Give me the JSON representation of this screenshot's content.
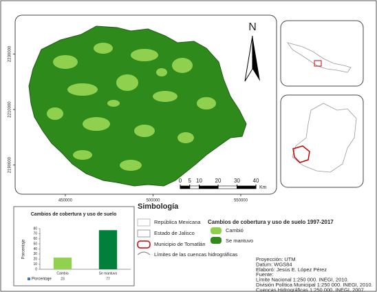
{
  "map": {
    "north": "N",
    "xlim": [
      421400,
      570400
    ],
    "ylim": [
      2179500,
      2244000
    ],
    "xticks": [
      450000,
      500000,
      550000
    ],
    "yticks": [
      2230000,
      2210000,
      2190000
    ],
    "scale": {
      "ticks": [
        0,
        5,
        10,
        20,
        30,
        40
      ],
      "unit": "Km"
    }
  },
  "chart": {
    "type": "bar",
    "title": "Cambios de cobertura y uso de suelo",
    "y_label": "Porcentaje",
    "series_name": "Porcentaje",
    "categories": [
      "Cambio",
      "Se mantuvo"
    ],
    "values": [
      23,
      77
    ],
    "colors": [
      "#92d050",
      "#00803a"
    ],
    "ylim": [
      0,
      80
    ],
    "yticks": [
      0,
      10,
      20,
      30,
      40,
      50,
      60,
      70,
      80
    ],
    "grid": false
  },
  "legend": {
    "title": "Simbología",
    "items": [
      "República Mexicana",
      "Estado de Jalisco",
      "Municipio de Tomatlán",
      "Límites de las cuencas hidrográficas"
    ],
    "cover_title": "Cambios de cobertura y uso de suelo 1997-2017",
    "cover_items": [
      "Cambió",
      "Se mantuvo"
    ]
  },
  "info": [
    "Proyección: UTM",
    "Datum: WGS84",
    "Elaboró: Jesús E. López Pérez",
    "Fuente:",
    "Límite Nacional 1:250 000. INEGI, 2010.",
    "División Política Municipal 1:250 000. INEGI, 2010.",
    "Cuencas Hidrográficas 1:250 000. INEGI, 2007."
  ]
}
